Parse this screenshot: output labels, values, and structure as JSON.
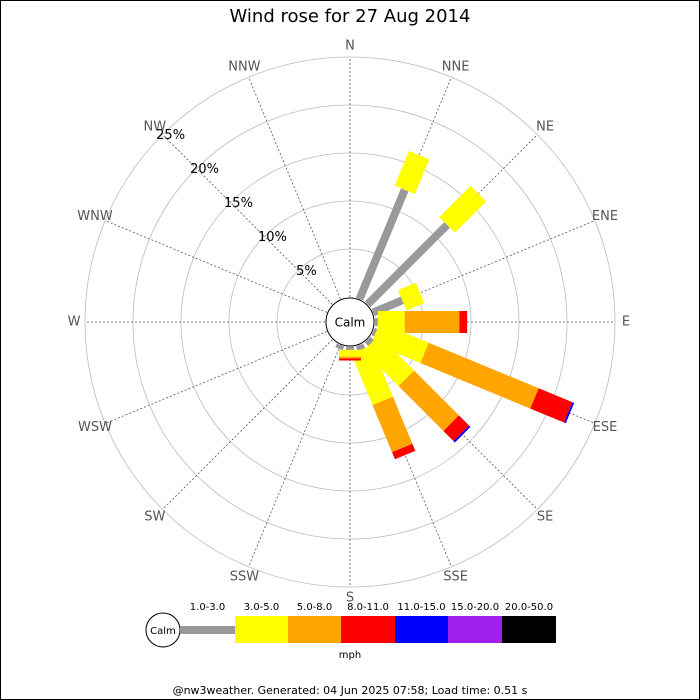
{
  "chart_data": {
    "type": "windrose",
    "title": "Wind rose for 27 Aug 2014",
    "directions": [
      "N",
      "NNE",
      "NE",
      "ENE",
      "E",
      "ESE",
      "SE",
      "SSE",
      "S",
      "SSW",
      "SW",
      "WSW",
      "W",
      "WNW",
      "NW",
      "NNW"
    ],
    "rlim": [
      0,
      25
    ],
    "rticks": [
      {
        "value": 5,
        "label": "5%"
      },
      {
        "value": 10,
        "label": "10%"
      },
      {
        "value": 15,
        "label": "15%"
      },
      {
        "value": 20,
        "label": "20%"
      },
      {
        "value": 25,
        "label": "25%"
      }
    ],
    "calm_label": "Calm",
    "series": [
      {
        "name": "1.0-3.0",
        "color": "#999999",
        "values": [
          0,
          12.3,
          11.7,
          3.3,
          0.3,
          0.3,
          0.5,
          0.5,
          0.3,
          0.4,
          0,
          0,
          0,
          0,
          0,
          0
        ]
      },
      {
        "name": "3.0-5.0",
        "color": "#ffff00",
        "values": [
          0,
          3.9,
          4.6,
          2.0,
          2.8,
          5.5,
          5.2,
          5.8,
          0.7,
          0,
          0,
          0,
          0,
          0,
          0,
          0
        ]
      },
      {
        "name": "5.0-8.0",
        "color": "#ffa500",
        "values": [
          0,
          0,
          0,
          0,
          5.7,
          12.4,
          6.6,
          5.3,
          0.2,
          0,
          0,
          0,
          0,
          0,
          0,
          0
        ]
      },
      {
        "name": "8.0-11.0",
        "color": "#ff0000",
        "values": [
          0,
          0,
          0,
          0,
          0.8,
          3.8,
          1.5,
          0.8,
          0.2,
          0,
          0,
          0,
          0,
          0,
          0,
          0
        ]
      },
      {
        "name": "11.0-15.0",
        "color": "#0000ff",
        "values": [
          0,
          0,
          0,
          0,
          0,
          0.2,
          0.2,
          0,
          0,
          0,
          0,
          0,
          0,
          0,
          0,
          0
        ]
      },
      {
        "name": "15.0-20.0",
        "color": "#a020f0",
        "values": [
          0,
          0,
          0,
          0,
          0,
          0,
          0,
          0,
          0,
          0,
          0,
          0,
          0,
          0,
          0,
          0
        ]
      },
      {
        "name": "20.0-50.0",
        "color": "#000000",
        "values": [
          0,
          0,
          0,
          0,
          0,
          0,
          0,
          0,
          0,
          0,
          0,
          0,
          0,
          0,
          0,
          0
        ]
      }
    ],
    "unit": "mph",
    "footer": "@nw3weather. Generated: 04 Jun 2025 07:58; Load time: 0.51 s"
  }
}
